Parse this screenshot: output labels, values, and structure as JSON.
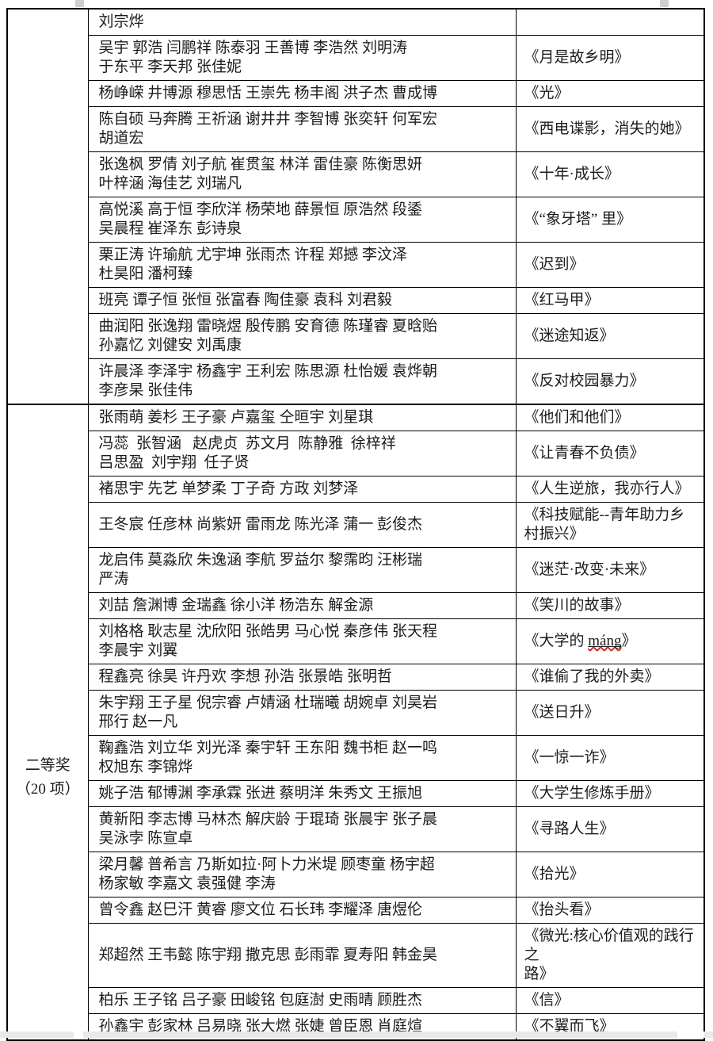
{
  "table": {
    "sections": [
      {
        "award": "",
        "rows": [
          {
            "names": "刘宗烨",
            "title": ""
          },
          {
            "names": "吴宇 郭浩 闫鹏祥 陈泰羽 王善博 李浩然 刘明涛\n于东平 李天邦 张佳妮",
            "title": "《月是故乡明》"
          },
          {
            "names": "杨峥嵘 井博源 穆思恬 王崇先 杨丰阁 洪子杰 曹成博",
            "title": "《光》"
          },
          {
            "names": "陈自硕 马奔腾 王祈涵 谢井井 李智博 张奕轩 何军宏\n胡道宏",
            "title": "《西电谍影，消失的她》"
          },
          {
            "names": "张逸枫 罗倩 刘子航 崔贯玺 林洋 雷佳豪 陈衡思妍\n叶梓涵 海佳艺 刘瑞凡",
            "title": "《十年·成长》"
          },
          {
            "names": "高悦溪 高于恒 李欣洋 杨荣地 薛景恒 原浩然 段鋈\n吴晨程 崔泽东 彭诗泉",
            "title": "《“象牙塔” 里》"
          },
          {
            "names": "栗正涛 许瑜航 尤宇坤 张雨杰 许程 郑撼 李汶泽\n杜昊阳 潘柯臻",
            "title": "《迟到》"
          },
          {
            "names": "班亮 谭子恒 张恒 张富春 陶佳豪 袁科 刘君毅",
            "title": "《红马甲》"
          },
          {
            "names": "曲润阳 张逸翔 雷晓煜 殷传鹏 安育德 陈瑾睿 夏晗贻\n孙嘉忆 刘健安 刘禹康",
            "title": "《迷途知返》"
          },
          {
            "names": "许晨泽 李泽宇 杨鑫宇 王利宏 陈思源 杜怡媛 袁烨朝\n李彦杲 张佳伟",
            "title": "《反对校园暴力》"
          }
        ]
      },
      {
        "award": "二等奖\n（20 项）",
        "rows": [
          {
            "names": "张雨萌 姜杉 王子豪 卢嘉玺 仝晅宇 刘星琪",
            "title": "《他们和他们》"
          },
          {
            "names": "冯蕊  张智涵   赵虎贞  苏文月  陈静雅  徐梓祥\n吕思盈  刘宇翔  任子贤",
            "title": "《让青春不负债》"
          },
          {
            "names": "褚思宇 先艺 单梦柔 丁子奇 方政 刘梦泽",
            "title": "《人生逆旅，我亦行人》"
          },
          {
            "names": "王冬宸 任彦林 尚紫妍 雷雨龙 陈光泽 蒲一 彭俊杰",
            "title": "《科技赋能--青年助力乡\n村振兴》"
          },
          {
            "names": "龙启伟 莫淼欣 朱逸涵 李航 罗益尔 黎霈昀 汪彬瑞\n严涛",
            "title": "《迷茫·改变·未来》"
          },
          {
            "names": "刘喆 詹渊博 金瑞鑫 徐小洋 杨浩东 解金源",
            "title": "《笑川的故事》"
          },
          {
            "names": "刘格格 耿志星 沈欣阳 张皓男 马心悦 秦彦伟 张天程\n李晨宇 刘翼",
            "title_prefix": "《大学的 ",
            "title_mark": "máng",
            "title_suffix": "》"
          },
          {
            "names": "程鑫亮 徐昊 许丹欢 李想 孙浩 张景皓 张明哲",
            "title": "《谁偷了我的外卖》"
          },
          {
            "names": "朱宇翔 王子星 倪宗睿 卢婧涵 杜瑞曦 胡婉卓 刘昊岩\n邢行 赵一凡",
            "title": "《送日升》"
          },
          {
            "names": "鞠鑫浩 刘立华 刘光泽 秦宇轩 王东阳 魏书柜 赵一鸣\n权旭东 李锦烨",
            "title": "《一惊一诈》"
          },
          {
            "names": "姚子浩 郁博渊 李承霖 张进 蔡明洋 朱秀文 王振旭",
            "title": "《大学生修炼手册》"
          },
          {
            "names": "黄新阳 李志博 马林杰 解庆龄 于琨琦 张晨宇 张子晨\n吴泳孛 陈宣卓",
            "title": "《寻路人生》"
          },
          {
            "names": "梁月馨 普希言 乃斯如拉·阿卜力米堤 顾枣童 杨宇超\n杨家敏 李嘉文 袁强健 李涛",
            "title": "《拾光》"
          },
          {
            "names": "曾令鑫 赵巳汗 黄睿 廖文位 石长玮 李耀泽 唐煜伦",
            "title": "《抬头看》"
          },
          {
            "names": "郑超然 王韦懿 陈宇翔 撒克思 彭雨霏 夏寿阳 韩金昊",
            "title": "《微光:核心价值观的践行之\n路》"
          },
          {
            "names": "柏乐 王子铭 吕子豪 田峻铭 包庭澍 史雨晴 顾胜杰",
            "title": "《信》"
          },
          {
            "names": "孙鑫宇 彭家林 吕易晓 张大燃 张婕 曾臣恩 肖庭煊",
            "title": "《不翼而飞》"
          }
        ]
      }
    ]
  }
}
